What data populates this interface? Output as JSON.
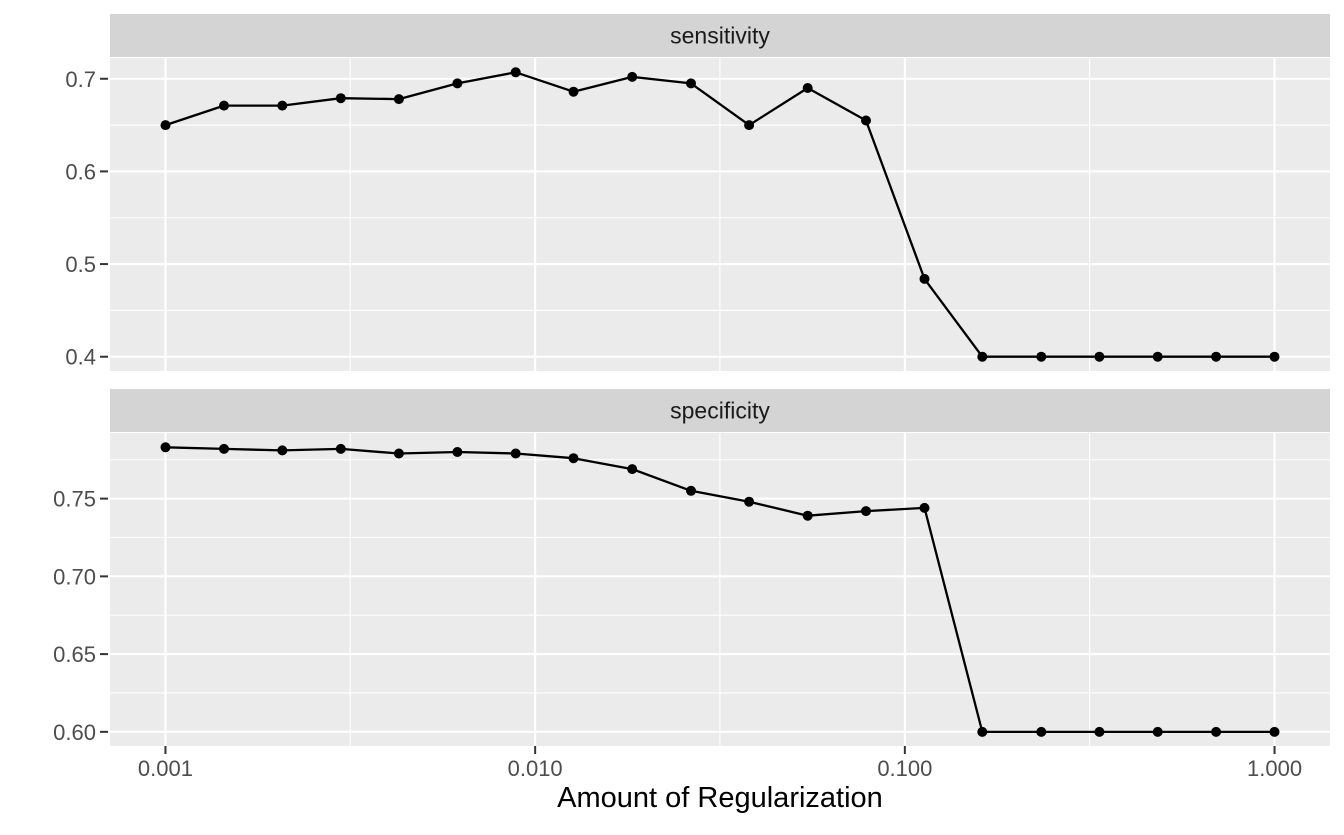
{
  "chart_data": {
    "type": "line",
    "title": "",
    "xlabel": "Amount of Regularization",
    "ylabel": "",
    "x_scale": "log10",
    "xlim_log": [
      -3.15,
      0.15
    ],
    "grid": true,
    "legend": "none",
    "marker": "filled-circle",
    "x": [
      0.001,
      0.00144,
      0.00207,
      0.00298,
      0.00428,
      0.00616,
      0.00886,
      0.0127,
      0.0183,
      0.0264,
      0.0379,
      0.0546,
      0.0785,
      0.113,
      0.162,
      0.234,
      0.336,
      0.483,
      0.695,
      1.0
    ],
    "x_ticks": [
      {
        "v": 0.001,
        "label": "0.001"
      },
      {
        "v": 0.01,
        "label": "0.010"
      },
      {
        "v": 0.1,
        "label": "0.100"
      },
      {
        "v": 1.0,
        "label": "1.000"
      }
    ],
    "x_minor": [
      0.00316,
      0.0316,
      0.316
    ],
    "facets": [
      {
        "label": "sensitivity",
        "values": [
          0.65,
          0.671,
          0.671,
          0.679,
          0.678,
          0.695,
          0.707,
          0.686,
          0.702,
          0.695,
          0.65,
          0.69,
          0.655,
          0.484,
          0.4,
          0.4,
          0.4,
          0.4,
          0.4,
          0.4
        ],
        "ylim": [
          0.3846,
          0.7224
        ],
        "y_ticks": [
          {
            "v": 0.4,
            "label": "0.4"
          },
          {
            "v": 0.5,
            "label": "0.5"
          },
          {
            "v": 0.6,
            "label": "0.6"
          },
          {
            "v": 0.7,
            "label": "0.7"
          }
        ],
        "y_minor": [
          0.45,
          0.55,
          0.65
        ]
      },
      {
        "label": "specificity",
        "values": [
          0.783,
          0.782,
          0.781,
          0.782,
          0.779,
          0.78,
          0.779,
          0.776,
          0.769,
          0.755,
          0.748,
          0.739,
          0.742,
          0.744,
          0.6,
          0.6,
          0.6,
          0.6,
          0.6,
          0.6
        ],
        "ylim": [
          0.5909,
          0.7922
        ],
        "y_ticks": [
          {
            "v": 0.6,
            "label": "0.60"
          },
          {
            "v": 0.65,
            "label": "0.65"
          },
          {
            "v": 0.7,
            "label": "0.70"
          },
          {
            "v": 0.75,
            "label": "0.75"
          }
        ],
        "y_minor": [
          0.625,
          0.675,
          0.725,
          0.775
        ]
      }
    ],
    "colors": {
      "background": "#FFFFFF",
      "panel_bg": "#EBEBEB",
      "strip_bg": "#D4D4D4",
      "grid": "#FFFFFF",
      "line": "#000000",
      "point": "#000000",
      "axis_text": "#4D4D4D",
      "tick_mark": "#333333",
      "strip_text": "#1A1A1A",
      "axis_title": "#000000"
    }
  }
}
